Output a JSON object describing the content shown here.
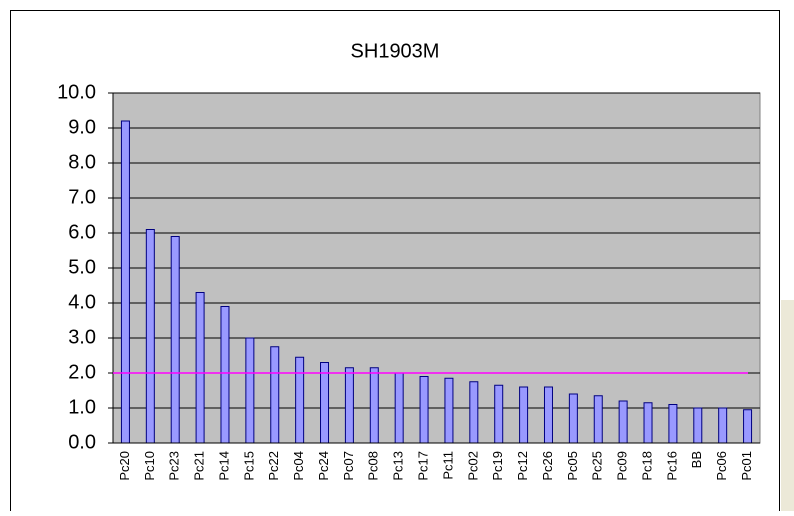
{
  "chart_data": {
    "type": "bar",
    "title": "SH1903M",
    "categories": [
      "Pc20",
      "Pc10",
      "Pc23",
      "Pc21",
      "Pc14",
      "Pc15",
      "Pc22",
      "Pc04",
      "Pc24",
      "Pc07",
      "Pc08",
      "Pc13",
      "Pc17",
      "Pc11",
      "Pc02",
      "Pc19",
      "Pc12",
      "Pc26",
      "Pc05",
      "Pc25",
      "Pc09",
      "Pc18",
      "Pc16",
      "BB",
      "Pc06",
      "Pc01"
    ],
    "values": [
      9.2,
      6.1,
      5.9,
      4.3,
      3.9,
      3.0,
      2.75,
      2.45,
      2.3,
      2.15,
      2.15,
      2.0,
      1.9,
      1.85,
      1.75,
      1.65,
      1.6,
      1.6,
      1.4,
      1.35,
      1.2,
      1.15,
      1.1,
      1.0,
      1.0,
      0.95
    ],
    "color": "#9999ff",
    "ylim": [
      0,
      10
    ],
    "yticks": [
      {
        "value": 0,
        "label": "0.0"
      },
      {
        "value": 1,
        "label": "1.0"
      },
      {
        "value": 2,
        "label": "2.0"
      },
      {
        "value": 3,
        "label": "3.0"
      },
      {
        "value": 4,
        "label": "4.0"
      },
      {
        "value": 5,
        "label": "5.0"
      },
      {
        "value": 6,
        "label": "6.0"
      },
      {
        "value": 7,
        "label": "7.0"
      },
      {
        "value": 8,
        "label": "8.0"
      },
      {
        "value": 9,
        "label": "9.0"
      },
      {
        "value": 10,
        "label": "10.0"
      }
    ],
    "grid": true,
    "reference_line": 2,
    "reference_color": "#ff00ff"
  }
}
